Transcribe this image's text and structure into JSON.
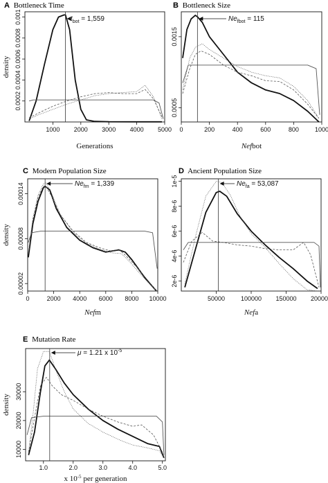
{
  "figure": {
    "panels": [
      {
        "letter": "A",
        "title": "Bottleneck Time"
      },
      {
        "letter": "B",
        "title": "Bottleneck Size"
      },
      {
        "letter": "C",
        "title": "Modern Population Size"
      },
      {
        "letter": "D",
        "title": "Ancient Population Size"
      },
      {
        "letter": "E",
        "title": "Mutation Rate"
      }
    ]
  },
  "chart_data": [
    {
      "type": "line",
      "title": "Bottleneck Time",
      "xlabel": "Generations",
      "ylabel": "density",
      "xlim": [
        0,
        5000
      ],
      "ylim": [
        0,
        0.00105
      ],
      "xticks": [
        "1000",
        "2000",
        "3000",
        "4000",
        "5000"
      ],
      "xtick_values": [
        1000,
        2000,
        3000,
        4000,
        5000
      ],
      "yticks": [
        "0.0002",
        "0.0004",
        "0.0006",
        "0.0008",
        "0.001"
      ],
      "ytick_values": [
        0.0002,
        0.0004,
        0.0006,
        0.0008,
        0.001
      ],
      "annotation": {
        "symbol": "t",
        "subscript": "bot",
        "text": " = 1,559",
        "x": 1450
      },
      "series": [
        {
          "style": "posterior",
          "x": [
            150,
            400,
            700,
            1000,
            1200,
            1400,
            1450,
            1600,
            1800,
            2000,
            2200,
            2500,
            3000,
            4000,
            4900
          ],
          "y": [
            1e-05,
            0.0002,
            0.00055,
            0.00088,
            0.001,
            0.00102,
            0.00102,
            0.00088,
            0.0004,
            0.00012,
            2e-05,
            5e-06,
            2e-06,
            1e-06,
            1e-06
          ]
        },
        {
          "style": "prior",
          "x": [
            150,
            300,
            500,
            1000,
            2000,
            3000,
            4000,
            4600,
            4800,
            4950
          ],
          "y": [
            0.0002,
            0.00021,
            0.00021,
            0.00021,
            0.00021,
            0.00021,
            0.00021,
            0.00021,
            0.00018,
            3e-05
          ]
        },
        {
          "style": "dashed",
          "x": [
            150,
            600,
            1000,
            1500,
            2000,
            2500,
            3000,
            3500,
            4000,
            4300,
            4600,
            4900
          ],
          "y": [
            4e-05,
            0.0001,
            0.00015,
            0.0002,
            0.00024,
            0.00027,
            0.00028,
            0.00027,
            0.00027,
            0.00031,
            0.00022,
            5e-05
          ]
        },
        {
          "style": "dotted",
          "x": [
            150,
            600,
            1000,
            1500,
            2000,
            2500,
            3000,
            3500,
            4000,
            4300,
            4600,
            4900
          ],
          "y": [
            3e-05,
            8e-05,
            0.00012,
            0.00017,
            0.00021,
            0.00025,
            0.00027,
            0.00028,
            0.00029,
            0.00035,
            0.00024,
            3e-05
          ]
        }
      ]
    },
    {
      "type": "line",
      "title": "Bottleneck Size",
      "xlabel": "Nefbot",
      "ylabel": "",
      "xlim": [
        0,
        1000
      ],
      "ylim": [
        0.0003,
        0.00185
      ],
      "xticks": [
        "0",
        "200",
        "400",
        "600",
        "800",
        "1000"
      ],
      "xtick_values": [
        0,
        200,
        400,
        600,
        800,
        1000
      ],
      "yticks": [
        "0.0005",
        "0.0015"
      ],
      "ytick_values": [
        0.0005,
        0.0015
      ],
      "annotation": {
        "symbol": "Ne",
        "subscript": "fbot",
        "text": " = 115",
        "x": 115
      },
      "series": [
        {
          "style": "posterior",
          "x": [
            10,
            40,
            70,
            100,
            115,
            150,
            200,
            300,
            400,
            500,
            600,
            700,
            800,
            900,
            980
          ],
          "y": [
            0.0012,
            0.0016,
            0.00175,
            0.0018,
            0.00178,
            0.0017,
            0.0015,
            0.00125,
            0.001,
            0.00085,
            0.00075,
            0.0007,
            0.0006,
            0.00045,
            0.0003
          ]
        },
        {
          "style": "prior",
          "x": [
            10,
            50,
            100,
            300,
            500,
            700,
            900,
            960,
            985
          ],
          "y": [
            0.00085,
            0.0011,
            0.0011,
            0.0011,
            0.0011,
            0.0011,
            0.0011,
            0.00105,
            0.0004
          ]
        },
        {
          "style": "dashed",
          "x": [
            10,
            60,
            100,
            140,
            200,
            300,
            400,
            500,
            600,
            700,
            800,
            900,
            980
          ],
          "y": [
            0.0007,
            0.00105,
            0.00125,
            0.0013,
            0.00125,
            0.0011,
            0.001,
            0.00095,
            0.00088,
            0.00087,
            0.00075,
            0.00055,
            0.00035
          ]
        },
        {
          "style": "dotted",
          "x": [
            10,
            60,
            100,
            150,
            200,
            300,
            400,
            500,
            600,
            700,
            800,
            900,
            980
          ],
          "y": [
            0.00075,
            0.0012,
            0.00135,
            0.0014,
            0.00132,
            0.0012,
            0.00108,
            0.001,
            0.00095,
            0.00092,
            0.0008,
            0.0006,
            0.00035
          ]
        }
      ]
    },
    {
      "type": "line",
      "title": "Modern Population Size",
      "xlabel": "Nefm",
      "ylabel": "density",
      "xlim": [
        0,
        10000
      ],
      "ylim": [
        1e-05,
        0.00016
      ],
      "xticks": [
        "0",
        "2000",
        "4000",
        "6000",
        "8000",
        "10000"
      ],
      "xtick_values": [
        0,
        2000,
        4000,
        6000,
        8000,
        10000
      ],
      "yticks": [
        "0.00002",
        "0.00008",
        "0.00014"
      ],
      "ytick_values": [
        2e-05,
        8e-05,
        0.00014
      ],
      "annotation": {
        "symbol": "Ne",
        "subscript": "fm",
        "text": " = 1,339",
        "x": 1339
      },
      "series": [
        {
          "style": "posterior",
          "x": [
            50,
            400,
            800,
            1200,
            1339,
            1700,
            2200,
            3000,
            4000,
            5000,
            6000,
            7000,
            7500,
            8000,
            9000,
            9900
          ],
          "y": [
            5.5e-05,
            0.0001,
            0.00013,
            0.000148,
            0.00015,
            0.000145,
            0.00012,
            9.5e-05,
            7.8e-05,
            6.8e-05,
            6.2e-05,
            6.5e-05,
            6.2e-05,
            5.2e-05,
            2.8e-05,
            1e-05
          ]
        },
        {
          "style": "prior",
          "x": [
            50,
            300,
            1000,
            3000,
            5000,
            7000,
            9000,
            9600,
            9950
          ],
          "y": [
            7.5e-05,
            8.8e-05,
            9e-05,
            9e-05,
            9e-05,
            9e-05,
            9e-05,
            8.8e-05,
            4e-05
          ]
        },
        {
          "style": "dashed",
          "x": [
            50,
            400,
            800,
            1200,
            1400,
            1800,
            2500,
            3500,
            4500,
            5500,
            6500,
            7000,
            7500,
            8500,
            9900
          ],
          "y": [
            6e-05,
            0.000105,
            0.000135,
            0.00015,
            0.00015,
            0.000138,
            0.000112,
            9e-05,
            7.5e-05,
            6.8e-05,
            6.3e-05,
            6.6e-05,
            5.8e-05,
            4e-05,
            1e-05
          ]
        },
        {
          "style": "dotted",
          "x": [
            50,
            400,
            800,
            1200,
            1400,
            1800,
            2500,
            3500,
            4500,
            5500,
            6500,
            7200,
            7800,
            8800,
            9900
          ],
          "y": [
            6e-05,
            0.000108,
            0.000138,
            0.000153,
            0.000155,
            0.000142,
            0.000113,
            8.8e-05,
            7.4e-05,
            6.6e-05,
            6.1e-05,
            6e-05,
            5e-05,
            3e-05,
            1e-05
          ]
        }
      ]
    },
    {
      "type": "line",
      "title": "Ancient Population Size",
      "xlabel": "Nefa",
      "ylabel": "",
      "xlim": [
        0,
        200000
      ],
      "ylim": [
        1.2e-06,
        1.02e-05
      ],
      "xticks": [
        "50000",
        "100000",
        "150000",
        "200000"
      ],
      "xtick_values": [
        50000,
        100000,
        150000,
        200000
      ],
      "yticks": [
        "2e-6",
        "4e-6",
        "6e-6",
        "8e-6",
        "1e-5"
      ],
      "ytick_values": [
        2e-06,
        4e-06,
        6e-06,
        8e-06,
        1e-05
      ],
      "annotation": {
        "symbol": "Ne",
        "subscript": "fa",
        "text": " = 53,087",
        "x": 53087
      },
      "series": [
        {
          "style": "posterior",
          "x": [
            5000,
            20000,
            35000,
            50000,
            55000,
            65000,
            80000,
            100000,
            120000,
            140000,
            160000,
            180000,
            195000
          ],
          "y": [
            1.5e-06,
            4.5e-06,
            7.5e-06,
            9.1e-06,
            9.2e-06,
            8.8e-06,
            7.4e-06,
            6e-06,
            4.9e-06,
            3.9e-06,
            3e-06,
            2e-06,
            1.4e-06
          ]
        },
        {
          "style": "prior",
          "x": [
            3000,
            10000,
            50000,
            100000,
            150000,
            190000,
            197000,
            199000
          ],
          "y": [
            4.5e-06,
            5.1e-06,
            5.1e-06,
            5.1e-06,
            5.1e-06,
            5.1e-06,
            4.8e-06,
            1.5e-06
          ]
        },
        {
          "style": "dashed",
          "x": [
            3000,
            15000,
            30000,
            45000,
            60000,
            80000,
            100000,
            120000,
            140000,
            160000,
            175000,
            185000,
            197000
          ],
          "y": [
            3.5e-06,
            5.2e-06,
            5.9e-06,
            5.2e-06,
            5.1e-06,
            4.9e-06,
            4.8e-06,
            4.6e-06,
            4.5e-06,
            4.5e-06,
            5.1e-06,
            4.1e-06,
            1.5e-06
          ]
        },
        {
          "style": "dotted",
          "x": [
            5000,
            20000,
            35000,
            50000,
            58000,
            70000,
            85000,
            100000,
            120000,
            140000,
            160000,
            180000,
            195000
          ],
          "y": [
            1.8e-06,
            5.5e-06,
            8.8e-06,
            1e-05,
            9.9e-06,
            8.9e-06,
            7.1e-06,
            5.8e-06,
            4.7e-06,
            3.4e-06,
            2.2e-06,
            1.3e-06,
            1.2e-06
          ]
        }
      ]
    },
    {
      "type": "line",
      "title": "Mutation Rate",
      "xlabel": "x 10-5 per generation",
      "ylabel": "density",
      "xlim": [
        0.4,
        5.1
      ],
      "ylim": [
        6000,
        45000
      ],
      "xticks": [
        "1.0",
        "2.0",
        "3.0",
        "4.0",
        "5.0"
      ],
      "xtick_values": [
        1.0,
        2.0,
        3.0,
        4.0,
        5.0
      ],
      "yticks": [
        "10000",
        "20000",
        "30000"
      ],
      "ytick_values": [
        10000,
        20000,
        30000
      ],
      "annotation": {
        "symbol": "μ",
        "subscript": "",
        "text": " = 1.21 x 10",
        "superscript": "-5",
        "x": 1.21
      },
      "series": [
        {
          "style": "posterior",
          "x": [
            0.5,
            0.7,
            0.9,
            1.05,
            1.2,
            1.4,
            1.7,
            2.0,
            2.5,
            3.0,
            3.5,
            4.0,
            4.5,
            4.9,
            5.05
          ],
          "y": [
            8000,
            16000,
            30000,
            39000,
            41000,
            38000,
            33000,
            29000,
            24000,
            20000,
            17000,
            14500,
            12000,
            11000,
            7000
          ]
        },
        {
          "style": "prior",
          "x": [
            0.45,
            0.6,
            1.0,
            2.0,
            3.0,
            4.0,
            4.8,
            5.0,
            5.05
          ],
          "y": [
            15000,
            21000,
            21500,
            21500,
            21500,
            21500,
            21500,
            19500,
            8000
          ]
        },
        {
          "style": "dashed",
          "x": [
            0.5,
            0.7,
            0.9,
            1.1,
            1.3,
            1.6,
            2.0,
            2.5,
            3.0,
            3.5,
            4.0,
            4.3,
            4.7,
            5.0
          ],
          "y": [
            9000,
            21000,
            32000,
            35000,
            32000,
            29000,
            27000,
            24000,
            21500,
            19500,
            18000,
            18500,
            15000,
            9000
          ]
        },
        {
          "style": "dotted",
          "x": [
            0.5,
            0.65,
            0.8,
            1.0,
            1.2,
            1.4,
            1.7,
            2.0,
            2.5,
            3.0,
            3.5,
            4.0,
            4.5,
            4.9,
            5.05
          ],
          "y": [
            9000,
            22000,
            38000,
            44000,
            44000,
            38000,
            30000,
            24000,
            19000,
            16000,
            13500,
            11500,
            10500,
            9500,
            7000
          ]
        }
      ]
    }
  ]
}
